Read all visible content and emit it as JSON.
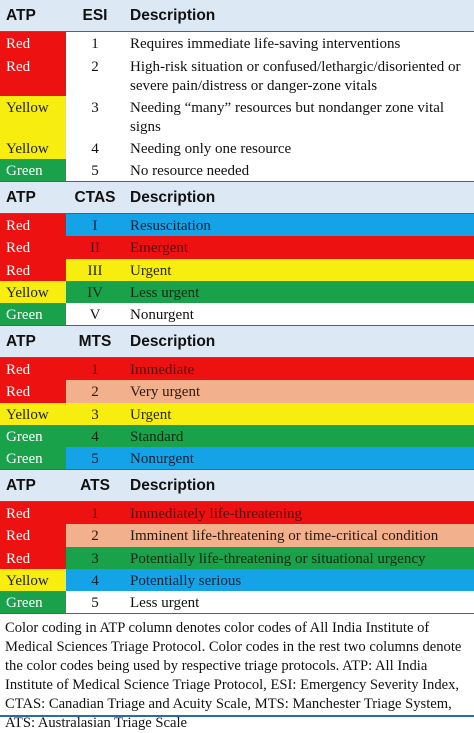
{
  "colors": {
    "Red": "#ee1111",
    "Yellow": "#f7ee10",
    "Green": "#1aa24a",
    "Blue": "#13a3e6",
    "Peach": "#f2b08c",
    "White": "#ffffff"
  },
  "sections": [
    {
      "h0": "ATP",
      "h1": "ESI",
      "h2": "Description",
      "rows": [
        {
          "atp": "Red",
          "num": "1",
          "desc": "Requires immediate life-saving interventions",
          "rest": "White",
          "h": 23
        },
        {
          "atp": "Red",
          "num": "2",
          "desc": "High-risk situation or confused/lethargic/disoriented or severe pain/distress or danger-zone vitals",
          "rest": "White",
          "h": 41
        },
        {
          "atp": "Yellow",
          "num": "3",
          "desc": "Needing “many” resources but nondanger zone vital signs",
          "rest": "White",
          "h": 41
        },
        {
          "atp": "Yellow",
          "num": "4",
          "desc": "Needing only one resource",
          "rest": "White",
          "h": 22
        },
        {
          "atp": "Green",
          "num": "5",
          "desc": "No resource needed",
          "rest": "White",
          "h": 22
        }
      ]
    },
    {
      "h0": "ATP",
      "h1": "CTAS",
      "h2": "Description",
      "rows": [
        {
          "atp": "Red",
          "num": "I",
          "desc": "Resuscitation",
          "rest": "Blue",
          "h": 22
        },
        {
          "atp": "Red",
          "num": "II",
          "desc": "Emergent",
          "rest": "Red",
          "h": 23
        },
        {
          "atp": "Red",
          "num": "III",
          "desc": "Urgent",
          "rest": "Yellow",
          "h": 22
        },
        {
          "atp": "Yellow",
          "num": "IV",
          "desc": "Less urgent",
          "rest": "Green",
          "h": 22
        },
        {
          "atp": "Green",
          "num": "V",
          "desc": "Nonurgent",
          "rest": "White",
          "h": 22
        }
      ]
    },
    {
      "h0": "ATP",
      "h1": "MTS",
      "h2": "Description",
      "rows": [
        {
          "atp": "Red",
          "num": "1",
          "desc": "Immediate",
          "rest": "Red",
          "h": 22
        },
        {
          "atp": "Red",
          "num": "2",
          "desc": "Very urgent",
          "rest": "Peach",
          "h": 23
        },
        {
          "atp": "Yellow",
          "num": "3",
          "desc": "Urgent",
          "rest": "Yellow",
          "h": 22
        },
        {
          "atp": "Green",
          "num": "4",
          "desc": "Standard",
          "rest": "Green",
          "h": 22
        },
        {
          "atp": "Green",
          "num": "5",
          "desc": "Nonurgent",
          "rest": "Blue",
          "h": 22
        }
      ]
    },
    {
      "h0": "ATP",
      "h1": "ATS",
      "h2": "Description",
      "rows": [
        {
          "atp": "Red",
          "num": "1",
          "desc": "Immediately life-threatening",
          "rest": "Red",
          "h": 22
        },
        {
          "atp": "Red",
          "num": "2",
          "desc": "Imminent life-threatening or time-critical condition",
          "rest": "Peach",
          "h": 23
        },
        {
          "atp": "Red",
          "num": "3",
          "desc": "Potentially life-threatening or situational urgency",
          "rest": "Green",
          "h": 22
        },
        {
          "atp": "Yellow",
          "num": "4",
          "desc": "Potentially serious",
          "rest": "Blue",
          "h": 22
        },
        {
          "atp": "Green",
          "num": "5",
          "desc": "Less urgent",
          "rest": "White",
          "h": 22
        }
      ]
    }
  ],
  "caption": "Color coding in ATP column denotes color codes of All India Institute of Medical Sciences Triage Protocol. Color codes in the rest two columns denote the color codes being used by respective triage protocols. ATP: All India Institute of Medical Science Triage Protocol, ESI: Emergency Severity Index, CTAS: Canadian Triage and Acuity Scale, MTS: Manchester Triage System, ATS: Australasian Triage Scale"
}
